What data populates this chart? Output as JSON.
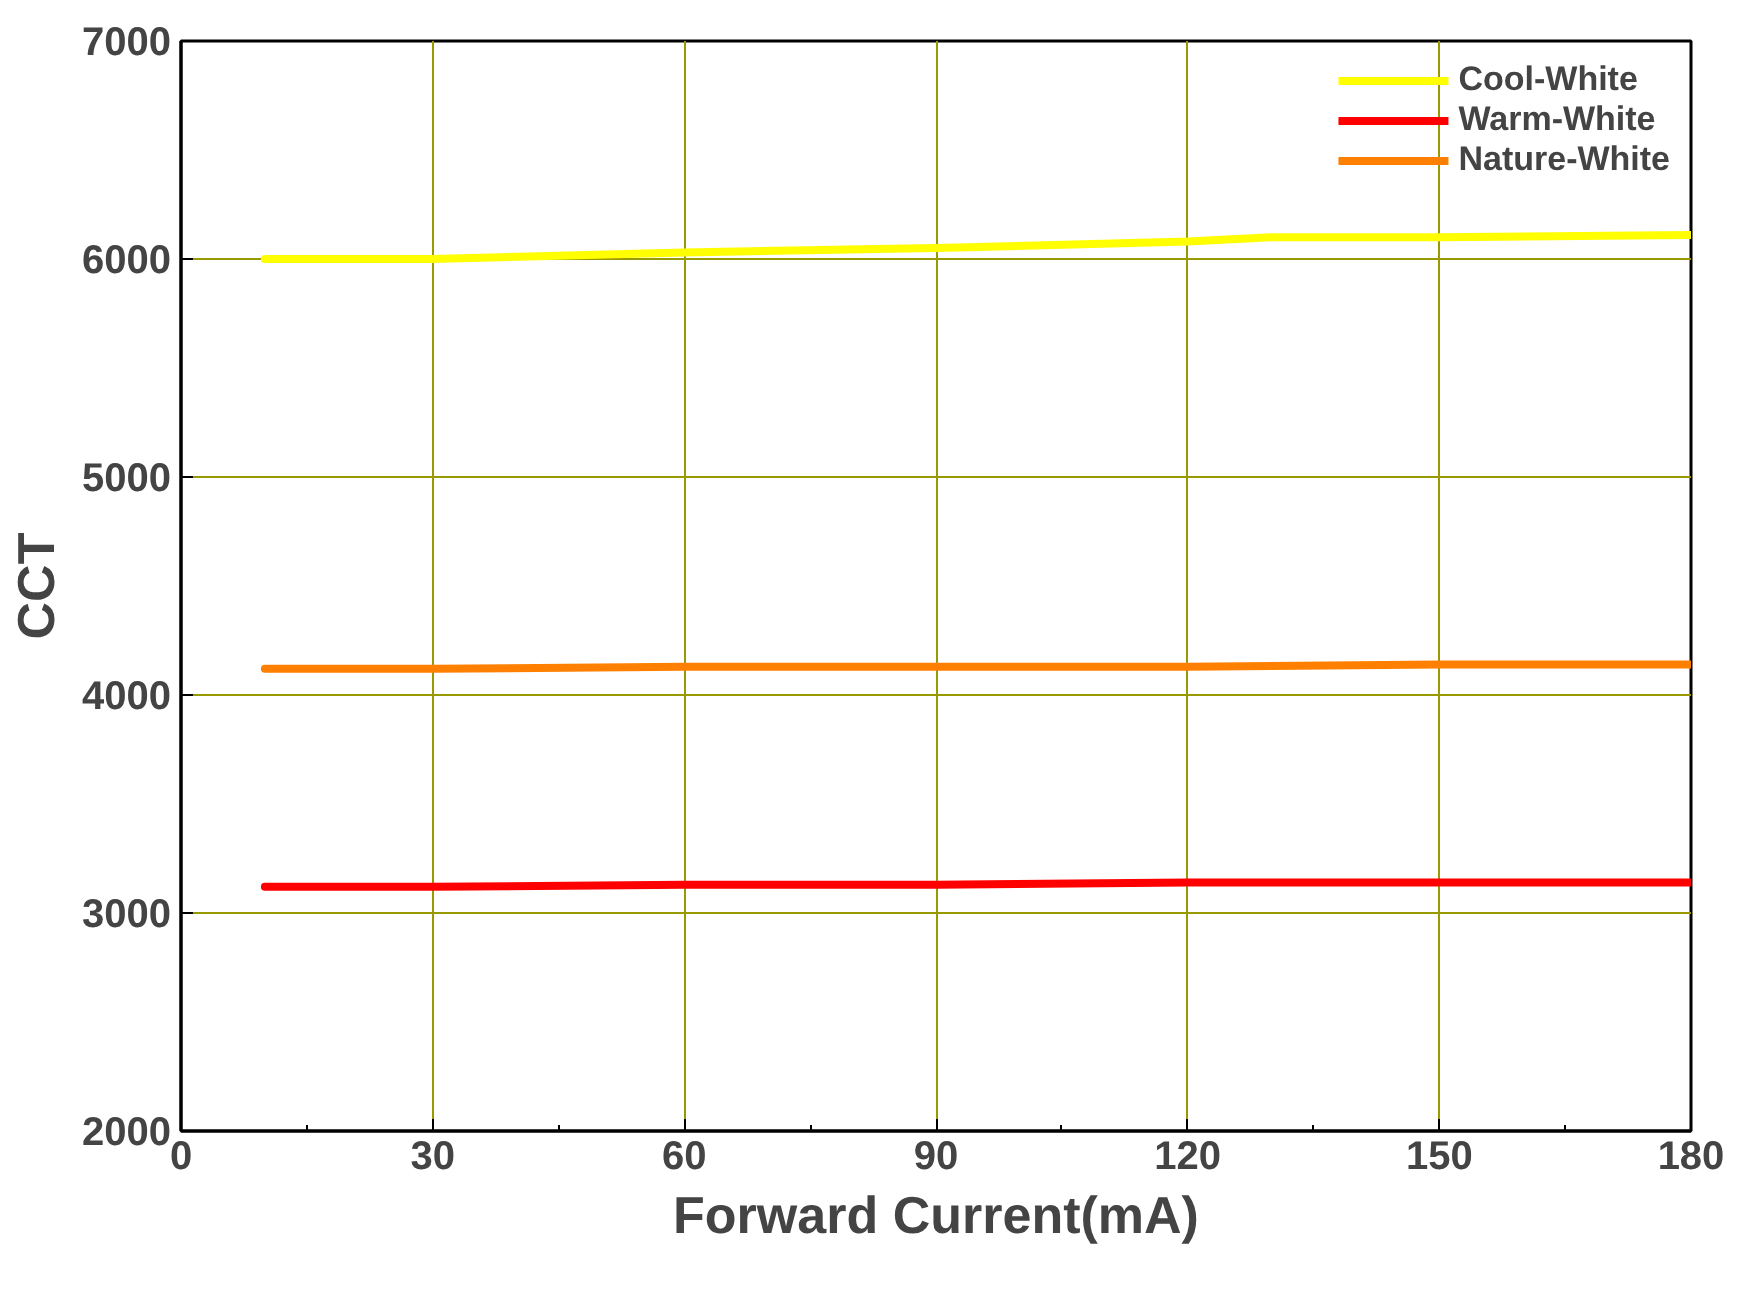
{
  "chart_data": {
    "type": "line",
    "xlabel": "Forward Current(mA)",
    "ylabel": "CCT",
    "xlim": [
      0,
      180
    ],
    "xticks": [
      0,
      30,
      60,
      90,
      120,
      150,
      180
    ],
    "ylim": [
      2000,
      7000
    ],
    "yticks": [
      2000,
      3000,
      4000,
      5000,
      6000,
      7000
    ],
    "grid": true,
    "legend": "top right",
    "line_style": "solid",
    "marker": "none",
    "series": [
      {
        "name": "Cool-White",
        "color": "#ffff00",
        "x": [
          10,
          30,
          60,
          90,
          120,
          130,
          150,
          180
        ],
        "values": [
          6000,
          6000,
          6030,
          6050,
          6080,
          6100,
          6100,
          6110
        ]
      },
      {
        "name": "Warm-White",
        "color": "#ff0000",
        "x": [
          10,
          30,
          60,
          90,
          120,
          150,
          180
        ],
        "values": [
          3120,
          3120,
          3130,
          3130,
          3140,
          3140,
          3140
        ]
      },
      {
        "name": "Nature-White",
        "color": "#ff8000",
        "x": [
          10,
          30,
          60,
          90,
          120,
          150,
          180
        ],
        "values": [
          4120,
          4120,
          4130,
          4130,
          4130,
          4140,
          4140
        ]
      }
    ]
  }
}
